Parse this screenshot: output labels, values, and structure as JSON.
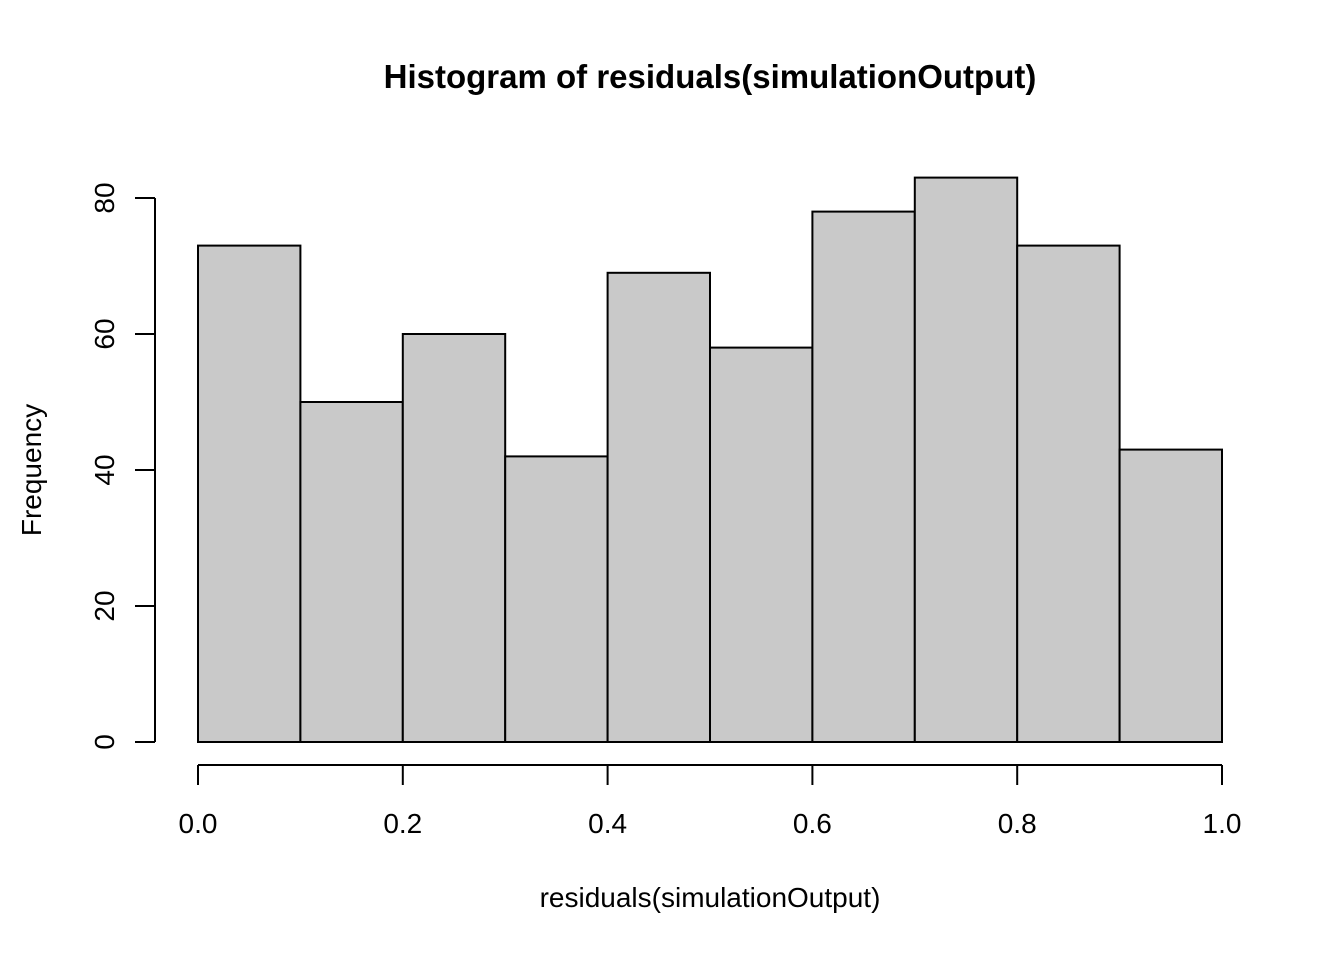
{
  "chart_data": {
    "type": "bar",
    "subtype": "histogram",
    "title": "Histogram of residuals(simulationOutput)",
    "xlabel": "residuals(simulationOutput)",
    "ylabel": "Frequency",
    "bin_start": 0.0,
    "bin_width": 0.1,
    "categories": [
      "0.0-0.1",
      "0.1-0.2",
      "0.2-0.3",
      "0.3-0.4",
      "0.4-0.5",
      "0.5-0.6",
      "0.6-0.7",
      "0.7-0.8",
      "0.8-0.9",
      "0.9-1.0"
    ],
    "values": [
      73,
      50,
      60,
      42,
      69,
      58,
      78,
      83,
      73,
      43
    ],
    "xlim": [
      0.0,
      1.0
    ],
    "ylim": [
      0,
      80
    ],
    "x_tick_values": [
      0.0,
      0.2,
      0.4,
      0.6,
      0.8,
      1.0
    ],
    "x_tick_labels": [
      "0.0",
      "0.2",
      "0.4",
      "0.6",
      "0.8",
      "1.0"
    ],
    "y_tick_values": [
      0,
      20,
      40,
      60,
      80
    ],
    "y_tick_labels": [
      "0",
      "20",
      "40",
      "60",
      "80"
    ],
    "grid": false,
    "legend_position": "none",
    "colors": {
      "bar_fill": "#C9C9C9",
      "bar_stroke": "#000000",
      "axis": "#000000",
      "text": "#000000",
      "background": "#FFFFFF"
    }
  }
}
